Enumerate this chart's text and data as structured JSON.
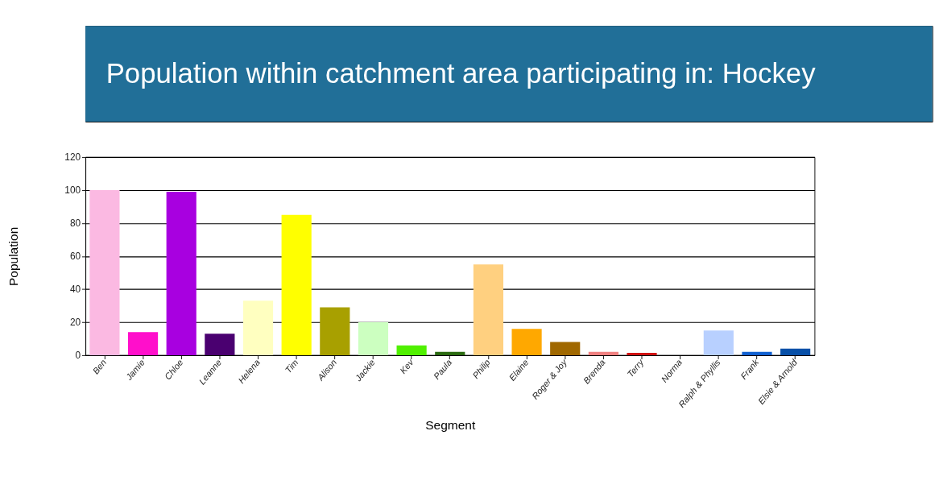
{
  "chart_data": {
    "type": "bar",
    "title": "Population within catchment area participating in: Hockey",
    "xlabel": "Segment",
    "ylabel": "Population",
    "categories": [
      "Ben",
      "Jamie",
      "Chloe",
      "Leanne",
      "Helena",
      "Tim",
      "Alison",
      "Jackie",
      "Kev",
      "Paula",
      "Philip",
      "Elaine",
      "Roger & Joy",
      "Brenda",
      "Terry",
      "Norma",
      "Ralph & Phyllis",
      "Frank",
      "Elsie & Arnold"
    ],
    "values": [
      100,
      14,
      99,
      13,
      33,
      85,
      29,
      20,
      6,
      2,
      55,
      16,
      8,
      2,
      1.5,
      0,
      15,
      2,
      4
    ],
    "colors": [
      "#fbb9e2",
      "#ff0fcb",
      "#a800e0",
      "#4a0070",
      "#ffffc0",
      "#ffff00",
      "#a8a000",
      "#ccffc0",
      "#50f000",
      "#2a6a10",
      "#ffd080",
      "#ffa800",
      "#a06800",
      "#f08080",
      "#d01010",
      "#f0f0f0",
      "#b8d0ff",
      "#1060d0",
      "#0850a8"
    ],
    "ylim": [
      0,
      120
    ],
    "yticks": [
      0,
      20,
      40,
      60,
      80,
      100,
      120
    ],
    "grid": "y",
    "legend": false
  }
}
